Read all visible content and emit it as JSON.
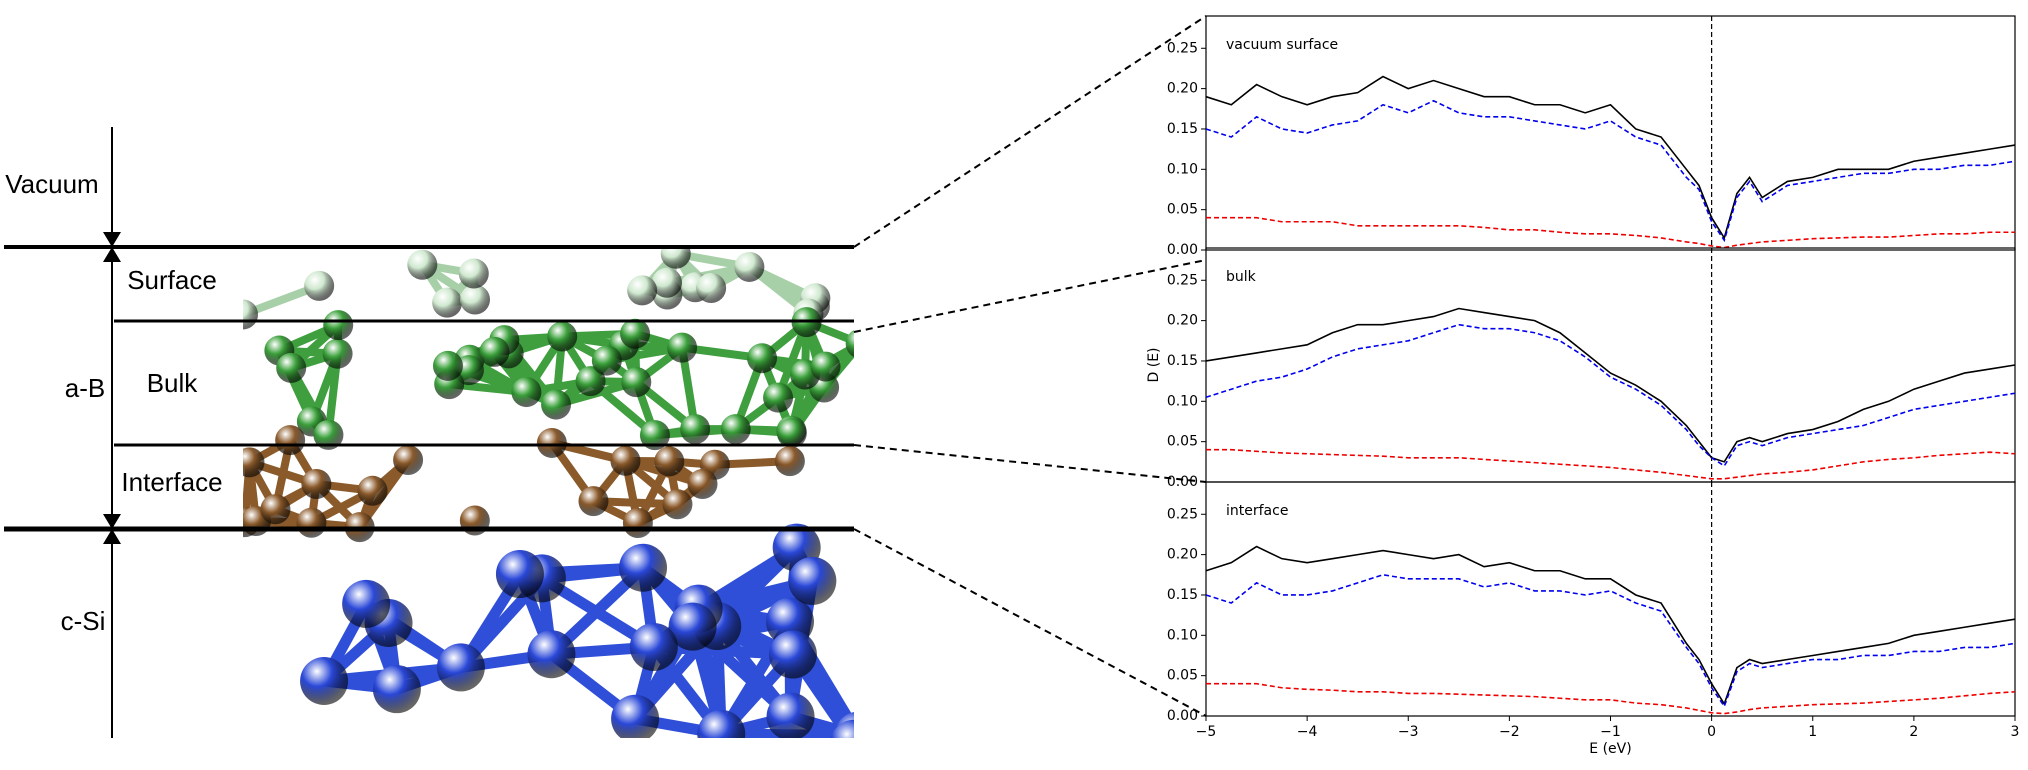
{
  "diagram": {
    "labels": [
      "Vacuum",
      "Surface",
      "a-B",
      "Bulk",
      "Interface",
      "c-Si"
    ]
  },
  "chart_data": [
    {
      "type": "line",
      "annotation": "vacuum surface",
      "vline": 0,
      "x": [
        -5,
        -4.75,
        -4.5,
        -4.25,
        -4,
        -3.75,
        -3.5,
        -3.25,
        -3,
        -2.75,
        -2.5,
        -2.25,
        -2,
        -1.75,
        -1.5,
        -1.25,
        -1,
        -0.75,
        -0.5,
        -0.25,
        -0.125,
        0,
        0.125,
        0.25,
        0.375,
        0.5,
        0.75,
        1,
        1.25,
        1.5,
        1.75,
        2,
        2.25,
        2.5,
        2.75,
        3
      ],
      "series": [
        {
          "color": "#000000",
          "linestyle": "solid",
          "values": [
            0.19,
            0.18,
            0.205,
            0.19,
            0.18,
            0.19,
            0.195,
            0.215,
            0.2,
            0.21,
            0.2,
            0.19,
            0.19,
            0.18,
            0.18,
            0.17,
            0.18,
            0.15,
            0.14,
            0.1,
            0.08,
            0.04,
            0.015,
            0.07,
            0.09,
            0.065,
            0.085,
            0.09,
            0.1,
            0.1,
            0.1,
            0.11,
            0.115,
            0.12,
            0.125,
            0.13
          ]
        },
        {
          "color": "#0000ee",
          "linestyle": "dashed",
          "values": [
            0.15,
            0.14,
            0.165,
            0.15,
            0.145,
            0.155,
            0.16,
            0.18,
            0.17,
            0.185,
            0.17,
            0.165,
            0.165,
            0.16,
            0.155,
            0.15,
            0.16,
            0.14,
            0.13,
            0.09,
            0.075,
            0.035,
            0.012,
            0.065,
            0.085,
            0.06,
            0.08,
            0.085,
            0.09,
            0.095,
            0.095,
            0.1,
            0.1,
            0.105,
            0.105,
            0.11
          ]
        },
        {
          "color": "#ee0000",
          "linestyle": "dashed",
          "values": [
            0.04,
            0.04,
            0.04,
            0.035,
            0.035,
            0.035,
            0.03,
            0.03,
            0.03,
            0.03,
            0.03,
            0.028,
            0.025,
            0.025,
            0.022,
            0.02,
            0.02,
            0.018,
            0.015,
            0.01,
            0.008,
            0.005,
            0.003,
            0.006,
            0.008,
            0.01,
            0.012,
            0.014,
            0.015,
            0.016,
            0.016,
            0.018,
            0.02,
            0.02,
            0.022,
            0.022
          ]
        }
      ],
      "xlim": [
        -5,
        3
      ],
      "ylim": [
        0,
        0.29
      ],
      "yticks": [
        {
          "value": 0,
          "label": "0.00"
        },
        {
          "value": 0.05,
          "label": "0.05"
        },
        {
          "value": 0.1,
          "label": "0.10"
        },
        {
          "value": 0.15,
          "label": "0.15"
        },
        {
          "value": 0.2,
          "label": "0.20"
        },
        {
          "value": 0.25,
          "label": "0.25"
        }
      ]
    },
    {
      "type": "line",
      "annotation": "bulk",
      "ylabel": "D (E)",
      "vline": 0,
      "x": [
        -5,
        -4.75,
        -4.5,
        -4.25,
        -4,
        -3.75,
        -3.5,
        -3.25,
        -3,
        -2.75,
        -2.5,
        -2.25,
        -2,
        -1.75,
        -1.5,
        -1.25,
        -1,
        -0.75,
        -0.5,
        -0.25,
        -0.125,
        0,
        0.125,
        0.25,
        0.375,
        0.5,
        0.75,
        1,
        1.25,
        1.5,
        1.75,
        2,
        2.25,
        2.5,
        2.75,
        3
      ],
      "series": [
        {
          "color": "#000000",
          "linestyle": "solid",
          "values": [
            0.15,
            0.155,
            0.16,
            0.165,
            0.17,
            0.185,
            0.195,
            0.195,
            0.2,
            0.205,
            0.215,
            0.21,
            0.205,
            0.2,
            0.185,
            0.16,
            0.135,
            0.12,
            0.1,
            0.07,
            0.05,
            0.03,
            0.025,
            0.05,
            0.055,
            0.05,
            0.06,
            0.065,
            0.075,
            0.09,
            0.1,
            0.115,
            0.125,
            0.135,
            0.14,
            0.145
          ]
        },
        {
          "color": "#0000ee",
          "linestyle": "dashed",
          "values": [
            0.105,
            0.115,
            0.125,
            0.13,
            0.14,
            0.155,
            0.165,
            0.17,
            0.175,
            0.185,
            0.195,
            0.19,
            0.19,
            0.185,
            0.175,
            0.155,
            0.13,
            0.115,
            0.095,
            0.065,
            0.045,
            0.03,
            0.02,
            0.045,
            0.05,
            0.045,
            0.055,
            0.06,
            0.065,
            0.07,
            0.08,
            0.09,
            0.095,
            0.1,
            0.105,
            0.11
          ]
        },
        {
          "color": "#ee0000",
          "linestyle": "dashed",
          "values": [
            0.04,
            0.04,
            0.038,
            0.036,
            0.035,
            0.034,
            0.033,
            0.032,
            0.03,
            0.03,
            0.03,
            0.028,
            0.026,
            0.024,
            0.022,
            0.02,
            0.018,
            0.015,
            0.012,
            0.008,
            0.006,
            0.004,
            0.004,
            0.006,
            0.008,
            0.01,
            0.012,
            0.015,
            0.02,
            0.025,
            0.028,
            0.03,
            0.033,
            0.035,
            0.037,
            0.035
          ]
        }
      ],
      "xlim": [
        -5,
        3
      ],
      "ylim": [
        0,
        0.29
      ],
      "yticks": [
        {
          "value": 0,
          "label": "0.00"
        },
        {
          "value": 0.05,
          "label": "0.05"
        },
        {
          "value": 0.1,
          "label": "0.10"
        },
        {
          "value": 0.15,
          "label": "0.15"
        },
        {
          "value": 0.2,
          "label": "0.20"
        },
        {
          "value": 0.25,
          "label": "0.25"
        }
      ]
    },
    {
      "type": "line",
      "annotation": "interface",
      "xlabel": "E (eV)",
      "vline": 0,
      "x": [
        -5,
        -4.75,
        -4.5,
        -4.25,
        -4,
        -3.75,
        -3.5,
        -3.25,
        -3,
        -2.75,
        -2.5,
        -2.25,
        -2,
        -1.75,
        -1.5,
        -1.25,
        -1,
        -0.75,
        -0.5,
        -0.25,
        -0.125,
        0,
        0.125,
        0.25,
        0.375,
        0.5,
        0.75,
        1,
        1.25,
        1.5,
        1.75,
        2,
        2.25,
        2.5,
        2.75,
        3
      ],
      "series": [
        {
          "color": "#000000",
          "linestyle": "solid",
          "values": [
            0.18,
            0.19,
            0.21,
            0.195,
            0.19,
            0.195,
            0.2,
            0.205,
            0.2,
            0.195,
            0.2,
            0.185,
            0.19,
            0.18,
            0.18,
            0.17,
            0.17,
            0.15,
            0.14,
            0.09,
            0.07,
            0.04,
            0.015,
            0.06,
            0.07,
            0.065,
            0.07,
            0.075,
            0.08,
            0.085,
            0.09,
            0.1,
            0.105,
            0.11,
            0.115,
            0.12
          ]
        },
        {
          "color": "#0000ee",
          "linestyle": "dashed",
          "values": [
            0.15,
            0.14,
            0.165,
            0.15,
            0.15,
            0.155,
            0.165,
            0.175,
            0.17,
            0.17,
            0.17,
            0.16,
            0.165,
            0.155,
            0.155,
            0.15,
            0.155,
            0.14,
            0.13,
            0.085,
            0.065,
            0.035,
            0.012,
            0.055,
            0.065,
            0.06,
            0.065,
            0.07,
            0.07,
            0.075,
            0.075,
            0.08,
            0.08,
            0.085,
            0.085,
            0.09
          ]
        },
        {
          "color": "#ee0000",
          "linestyle": "dashed",
          "values": [
            0.04,
            0.04,
            0.04,
            0.035,
            0.033,
            0.032,
            0.03,
            0.03,
            0.028,
            0.028,
            0.027,
            0.026,
            0.025,
            0.024,
            0.022,
            0.02,
            0.02,
            0.016,
            0.014,
            0.01,
            0.007,
            0.004,
            0.003,
            0.005,
            0.008,
            0.01,
            0.012,
            0.014,
            0.015,
            0.016,
            0.018,
            0.02,
            0.022,
            0.025,
            0.028,
            0.03
          ]
        }
      ],
      "xlim": [
        -5,
        3
      ],
      "ylim": [
        0,
        0.29
      ],
      "xticks": [
        {
          "value": -5,
          "label": "−5"
        },
        {
          "value": -4,
          "label": "−4"
        },
        {
          "value": -3,
          "label": "−3"
        },
        {
          "value": -2,
          "label": "−2"
        },
        {
          "value": -1,
          "label": "−1"
        },
        0,
        1,
        2,
        3
      ],
      "yticks": [
        {
          "value": 0,
          "label": "0.00"
        },
        {
          "value": 0.05,
          "label": "0.05"
        },
        {
          "value": 0.1,
          "label": "0.10"
        },
        {
          "value": 0.15,
          "label": "0.15"
        },
        {
          "value": 0.2,
          "label": "0.20"
        },
        {
          "value": 0.25,
          "label": "0.25"
        }
      ]
    }
  ]
}
